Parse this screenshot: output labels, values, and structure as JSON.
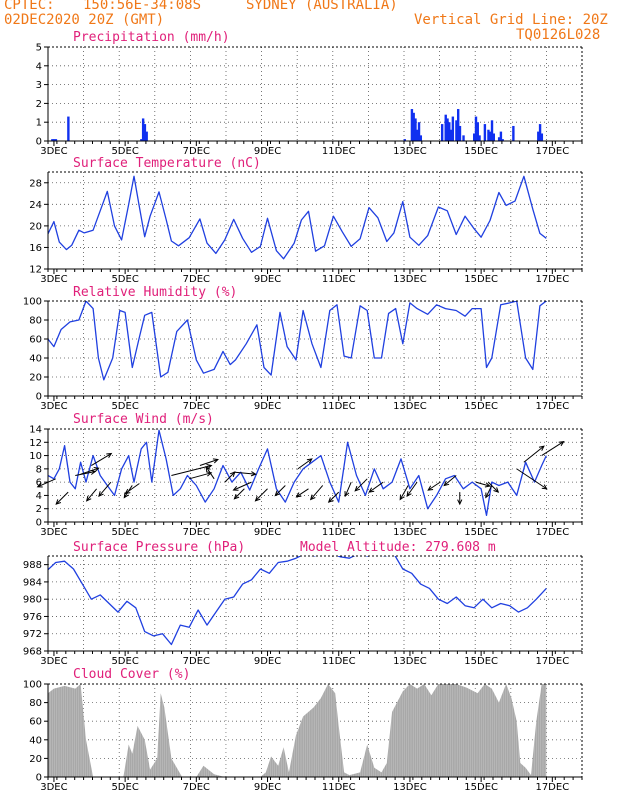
{
  "header": {
    "source": "CPTEC:",
    "coords": "150:56E-34:08S",
    "location": "SYDNEY (AUSTRALIA)",
    "date": "02DEC2020 20Z (GMT)",
    "grid_line": "Vertical Grid Line: 20Z",
    "model": "TQ0126L028"
  },
  "colors": {
    "header": "#f07818",
    "title": "#e0207a",
    "line": "#2040e0",
    "cloud": "#a8a8a8",
    "bar": "#1030f0"
  },
  "x_axis": {
    "start_day": 2,
    "start_hour": 20,
    "end_day": 17,
    "end_hour": 20,
    "ticks": [
      "3DEC",
      "5DEC",
      "7DEC",
      "9DEC",
      "11DEC",
      "13DEC",
      "15DEC",
      "17DEC"
    ],
    "tick_days": [
      3,
      5,
      7,
      9,
      11,
      13,
      15,
      17
    ]
  },
  "chart_data": [
    {
      "type": "bar",
      "title": "Precipitation (mm/h)",
      "ylim": [
        0,
        5
      ],
      "yticks": [
        "0",
        "1",
        "2",
        "3",
        "4",
        "5"
      ],
      "x": [
        2.95,
        3.0,
        3.05,
        3.4,
        5.45,
        5.5,
        5.55,
        5.6,
        12.85,
        13.05,
        13.1,
        13.15,
        13.2,
        13.25,
        13.3,
        13.9,
        14.0,
        14.05,
        14.1,
        14.15,
        14.2,
        14.3,
        14.35,
        14.4,
        14.5,
        14.8,
        14.85,
        14.9,
        14.95,
        15.1,
        15.2,
        15.25,
        15.3,
        15.35,
        15.5,
        15.55,
        15.6,
        15.9,
        16.6,
        16.65,
        16.7
      ],
      "values": [
        0.1,
        0.1,
        0.1,
        1.3,
        0.1,
        1.2,
        0.9,
        0.5,
        0.1,
        1.7,
        1.5,
        1.2,
        0.6,
        1.0,
        0.3,
        0.9,
        1.4,
        1.2,
        1.0,
        0.6,
        1.3,
        1.1,
        1.7,
        0.8,
        0.3,
        0.4,
        1.3,
        1.0,
        0.3,
        0.9,
        0.6,
        0.5,
        1.1,
        0.4,
        0.2,
        0.5,
        0.1,
        0.8,
        0.5,
        0.9,
        0.4
      ]
    },
    {
      "type": "line",
      "title": "Surface Temperature (nC)",
      "ylim": [
        12,
        30
      ],
      "yticks": [
        "12",
        "16",
        "20",
        "24",
        "28"
      ],
      "x": [
        2.83,
        3.0,
        3.15,
        3.35,
        3.5,
        3.7,
        3.85,
        4.1,
        4.3,
        4.5,
        4.7,
        4.9,
        5.1,
        5.25,
        5.4,
        5.55,
        5.7,
        5.95,
        6.15,
        6.3,
        6.5,
        6.8,
        7.1,
        7.3,
        7.55,
        7.8,
        8.05,
        8.3,
        8.55,
        8.8,
        9.0,
        9.25,
        9.45,
        9.75,
        9.95,
        10.15,
        10.35,
        10.6,
        10.85,
        11.1,
        11.35,
        11.6,
        11.85,
        12.1,
        12.35,
        12.55,
        12.8,
        13.0,
        13.25,
        13.5,
        13.8,
        14.05,
        14.3,
        14.55,
        14.8,
        15.0,
        15.25,
        15.5,
        15.7,
        15.95,
        16.2,
        16.45,
        16.65,
        16.83
      ],
      "values": [
        18.5,
        20.8,
        17,
        15.6,
        16.4,
        19.2,
        18.7,
        19.2,
        22.8,
        26.4,
        20,
        17.4,
        24,
        29.2,
        23.5,
        18,
        21.8,
        26.3,
        21.2,
        17.2,
        16.3,
        17.8,
        21.3,
        16.8,
        14.9,
        17.4,
        21.2,
        17.7,
        15.1,
        16.2,
        21.4,
        15.4,
        13.9,
        16.8,
        21.1,
        22.7,
        15.3,
        16.3,
        21.8,
        18.9,
        16.2,
        17.6,
        23.4,
        21.5,
        17.1,
        18.7,
        24.5,
        17.9,
        16.4,
        18.2,
        23.5,
        22.8,
        18.4,
        21.8,
        19.5,
        17.9,
        21,
        26.2,
        23.8,
        24.6,
        29.2,
        23.1,
        18.6,
        17.7
      ]
    },
    {
      "type": "line",
      "title": "Relative Humidity (%)",
      "ylim": [
        0,
        100
      ],
      "yticks": [
        "0",
        "20",
        "40",
        "60",
        "80",
        "100"
      ],
      "x": [
        2.83,
        3.0,
        3.2,
        3.45,
        3.7,
        3.9,
        4.1,
        4.25,
        4.4,
        4.65,
        4.85,
        5.0,
        5.2,
        5.4,
        5.55,
        5.75,
        6.0,
        6.2,
        6.45,
        6.75,
        7.0,
        7.2,
        7.5,
        7.75,
        7.95,
        8.1,
        8.4,
        8.7,
        8.9,
        9.1,
        9.35,
        9.55,
        9.8,
        10.0,
        10.25,
        10.5,
        10.75,
        10.95,
        11.15,
        11.35,
        11.6,
        11.8,
        12.0,
        12.2,
        12.4,
        12.6,
        12.8,
        13.0,
        13.2,
        13.5,
        13.75,
        14.0,
        14.3,
        14.55,
        14.75,
        15.0,
        15.15,
        15.3,
        15.55,
        15.8,
        16.0,
        16.25,
        16.45,
        16.65,
        16.83
      ],
      "values": [
        60,
        52,
        70,
        78,
        80,
        100,
        92,
        40,
        17,
        40,
        90,
        88,
        30,
        62,
        85,
        88,
        20,
        25,
        68,
        80,
        38,
        24,
        28,
        47,
        33,
        38,
        55,
        75,
        30,
        22,
        88,
        52,
        38,
        90,
        55,
        30,
        90,
        96,
        42,
        40,
        95,
        90,
        40,
        40,
        87,
        92,
        55,
        98,
        92,
        86,
        96,
        92,
        90,
        84,
        92,
        92,
        30,
        40,
        96,
        98,
        100,
        40,
        28,
        95,
        100
      ]
    },
    {
      "type": "line",
      "title": "Surface Wind (m/s)",
      "ylim": [
        0,
        14
      ],
      "yticks": [
        "0",
        "2",
        "4",
        "6",
        "8",
        "10",
        "12",
        "14"
      ],
      "x": [
        2.83,
        3.0,
        3.15,
        3.3,
        3.45,
        3.6,
        3.75,
        3.9,
        4.1,
        4.3,
        4.5,
        4.7,
        4.9,
        5.1,
        5.25,
        5.45,
        5.6,
        5.75,
        5.95,
        6.15,
        6.35,
        6.55,
        6.75,
        7.0,
        7.25,
        7.5,
        7.75,
        8.0,
        8.25,
        8.5,
        8.75,
        9.0,
        9.25,
        9.5,
        9.75,
        10.0,
        10.25,
        10.5,
        10.75,
        11.0,
        11.25,
        11.5,
        11.75,
        12.0,
        12.25,
        12.5,
        12.75,
        13.0,
        13.25,
        13.5,
        13.75,
        14.0,
        14.25,
        14.5,
        14.75,
        15.0,
        15.15,
        15.3,
        15.5,
        15.75,
        16.0,
        16.25,
        16.5,
        16.7,
        16.83
      ],
      "values": [
        7,
        6.5,
        8,
        11.5,
        6,
        5,
        9,
        6,
        10,
        7,
        5.5,
        4,
        8,
        10,
        6,
        11,
        12,
        6,
        13.8,
        9.5,
        4,
        5,
        7,
        5.5,
        3,
        5,
        8.5,
        6,
        7.5,
        4.8,
        8,
        11,
        5,
        3,
        6,
        8,
        9,
        10,
        6,
        3,
        12,
        7,
        4,
        8,
        5,
        6,
        9.5,
        5,
        7,
        2,
        4,
        6.5,
        7,
        5,
        6,
        5,
        1,
        6,
        5.5,
        6,
        4,
        9,
        6,
        8.5,
        10
      ]
    },
    {
      "type": "line",
      "title": "Surface Pressure (hPa)",
      "subtitle": "Model Altitude: 279.608 m",
      "ylim": [
        968,
        990
      ],
      "yticks": [
        "968",
        "972",
        "976",
        "980",
        "984",
        "988"
      ],
      "x": [
        2.83,
        3.05,
        3.3,
        3.55,
        3.8,
        4.05,
        4.3,
        4.55,
        4.8,
        5.05,
        5.3,
        5.55,
        5.8,
        6.05,
        6.3,
        6.55,
        6.8,
        7.05,
        7.3,
        7.55,
        7.8,
        8.05,
        8.3,
        8.55,
        8.8,
        9.05,
        9.3,
        9.55,
        9.8,
        10.05,
        10.3,
        10.55,
        10.8,
        11.05,
        11.3,
        11.55,
        11.8,
        12.05,
        12.3,
        12.55,
        12.8,
        13.05,
        13.3,
        13.55,
        13.8,
        14.05,
        14.3,
        14.55,
        14.8,
        15.05,
        15.3,
        15.55,
        15.8,
        16.05,
        16.3,
        16.55,
        16.83
      ],
      "values": [
        986.8,
        988.5,
        988.8,
        987,
        983.5,
        980,
        981,
        979,
        977,
        979.5,
        978,
        972.5,
        971.5,
        972,
        969.5,
        974,
        973.5,
        977.5,
        974,
        977,
        980,
        980.5,
        983.5,
        984.5,
        987,
        986,
        988.5,
        988.8,
        989.5,
        990.5,
        990,
        990.5,
        990.5,
        989.8,
        989.5,
        990.5,
        990,
        990.5,
        990,
        990.5,
        987,
        986,
        983.5,
        982.5,
        980,
        979,
        980.5,
        978.5,
        978,
        980,
        978,
        979,
        978.5,
        977,
        978,
        980,
        982.5
      ]
    },
    {
      "type": "area",
      "title": "Cloud Cover (%)",
      "ylim": [
        0,
        100
      ],
      "yticks": [
        "0",
        "20",
        "40",
        "60",
        "80",
        "100"
      ],
      "x": [
        2.83,
        3.0,
        3.3,
        3.6,
        3.75,
        3.9,
        4.1,
        4.25,
        4.4,
        4.65,
        4.8,
        4.95,
        5.1,
        5.2,
        5.35,
        5.55,
        5.7,
        5.9,
        6.0,
        6.1,
        6.3,
        6.6,
        7.0,
        7.2,
        7.5,
        7.8,
        8.0,
        8.2,
        8.5,
        8.8,
        8.95,
        9.1,
        9.3,
        9.45,
        9.6,
        9.8,
        10.0,
        10.3,
        10.5,
        10.7,
        10.9,
        11.0,
        11.15,
        11.3,
        11.6,
        11.8,
        12.0,
        12.2,
        12.35,
        12.5,
        12.8,
        13.0,
        13.2,
        13.4,
        13.6,
        13.8,
        14.0,
        14.3,
        14.6,
        14.9,
        15.1,
        15.3,
        15.5,
        15.7,
        15.85,
        16.0,
        16.1,
        16.25,
        16.4,
        16.55,
        16.7,
        16.83
      ],
      "values": [
        90,
        95,
        98,
        95,
        100,
        40,
        0,
        0,
        0,
        0,
        0,
        0,
        35,
        25,
        55,
        40,
        8,
        20,
        90,
        75,
        20,
        0,
        0,
        12,
        3,
        0,
        0,
        0,
        0,
        0,
        5,
        22,
        12,
        32,
        5,
        45,
        65,
        75,
        85,
        100,
        90,
        55,
        5,
        2,
        5,
        35,
        10,
        5,
        15,
        70,
        92,
        100,
        95,
        100,
        88,
        100,
        100,
        100,
        96,
        90,
        100,
        95,
        80,
        100,
        85,
        60,
        15,
        10,
        2,
        60,
        100,
        100
      ]
    }
  ]
}
